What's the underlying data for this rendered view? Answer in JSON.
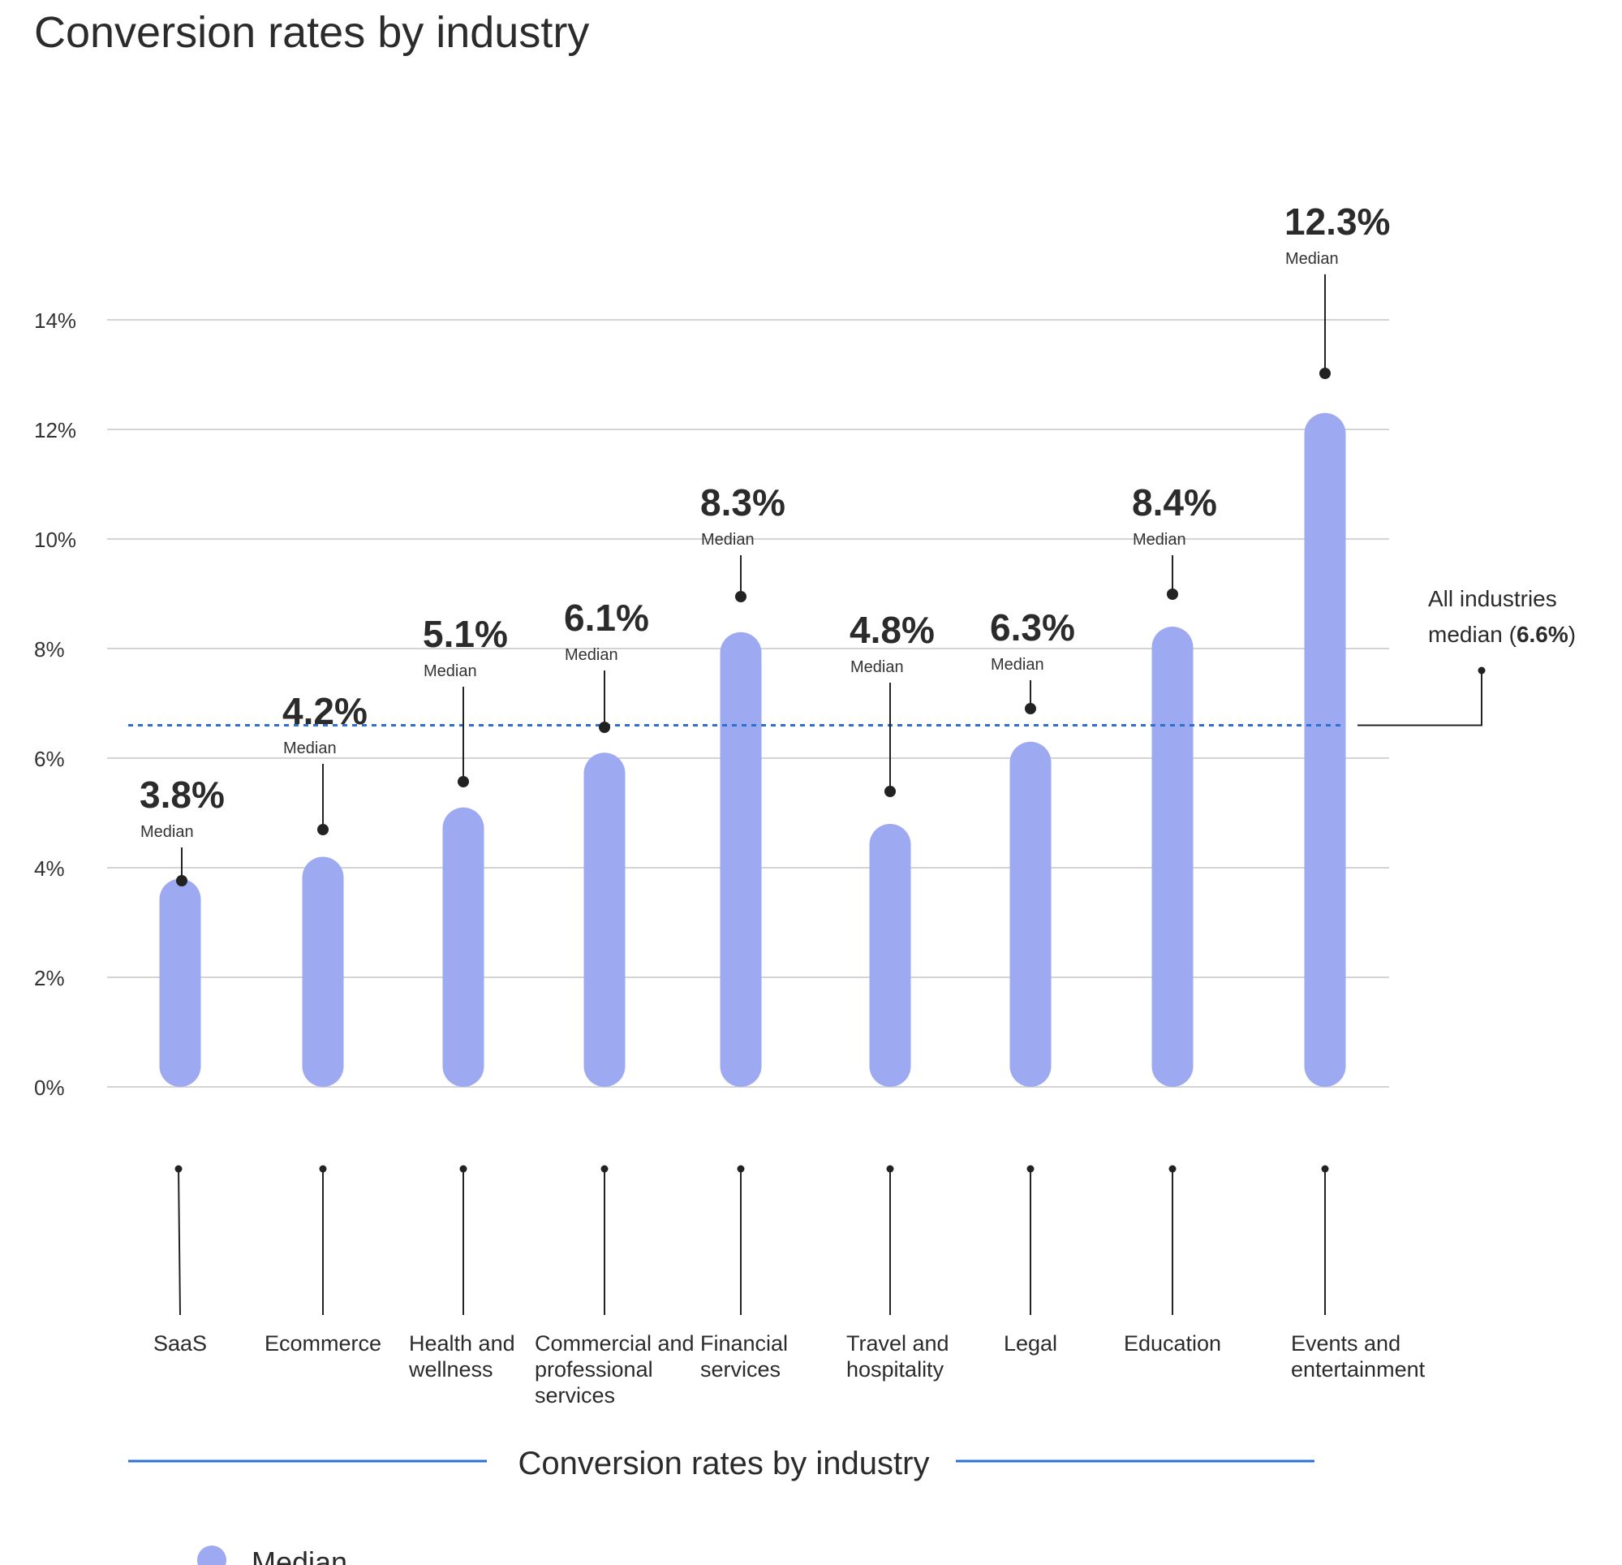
{
  "chart_data": {
    "type": "bar",
    "title": "Conversion rates by industry",
    "subtitle": "Conversion rates by industry",
    "categories": [
      "SaaS",
      "Ecommerce",
      "Health and wellness",
      "Commercial and professional services",
      "Financial services",
      "Travel and hospitality",
      "Legal",
      "Education",
      "Events and entertainment"
    ],
    "category_lines": [
      [
        "SaaS"
      ],
      [
        "Ecommerce"
      ],
      [
        "Health and",
        "wellness"
      ],
      [
        "Commercial and",
        "professional",
        "services"
      ],
      [
        "Financial",
        "services"
      ],
      [
        "Travel and",
        "hospitality"
      ],
      [
        "Legal"
      ],
      [
        "Education"
      ],
      [
        "Events and",
        "entertainment"
      ]
    ],
    "series": [
      {
        "name": "Median",
        "values": [
          3.8,
          4.2,
          5.1,
          6.1,
          8.3,
          4.8,
          6.3,
          8.4,
          12.3
        ],
        "labels": [
          "3.8%",
          "4.2%",
          "5.1%",
          "6.1%",
          "8.3%",
          "4.8%",
          "6.3%",
          "8.4%",
          "12.3%"
        ],
        "sublabel": "Median",
        "color": "#9daaf2"
      }
    ],
    "ylim": [
      0,
      14
    ],
    "yticks": [
      "0%",
      "2%",
      "4%",
      "6%",
      "8%",
      "10%",
      "12%",
      "14%"
    ],
    "grid": true,
    "reference_line": {
      "value": 6.6,
      "label_line1": "All industries",
      "label_line2_prefix": "median (",
      "label_line2_value": "6.6%",
      "label_line2_suffix": ")",
      "color": "#2f6fd0"
    },
    "legend": {
      "position": "bottom-left",
      "label": "Median"
    },
    "accent_color": "#2f6fd0"
  }
}
